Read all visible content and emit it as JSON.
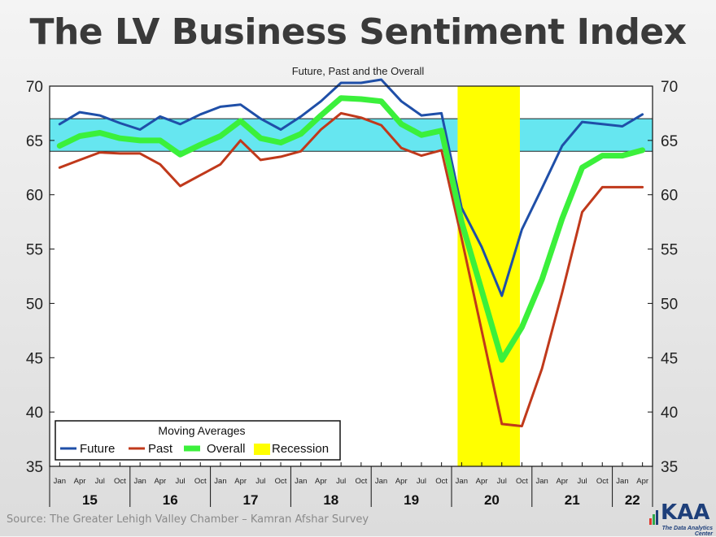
{
  "header": {
    "title": "The LV Business Sentiment Index",
    "subtitle": "Future, Past and the Overall"
  },
  "footer": {
    "source": "Source: The Greater Lehigh Valley Chamber – Kamran Afshar Survey",
    "logo_text": "KAA",
    "logo_subtext": "The Data Analytics Center"
  },
  "chart_data": {
    "type": "line",
    "ylim": [
      35,
      70
    ],
    "yticks": [
      35,
      40,
      45,
      50,
      55,
      60,
      65,
      70
    ],
    "x_month_labels": [
      "Jan",
      "Apr",
      "Jul",
      "Oct",
      "Jan",
      "Apr",
      "Jul",
      "Oct",
      "Jan",
      "Apr",
      "Jul",
      "Oct",
      "Jan",
      "Apr",
      "Jul",
      "Oct",
      "Jan",
      "Apr",
      "Jul",
      "Oct",
      "Jan",
      "Apr",
      "Jul",
      "Oct",
      "Jan",
      "Apr",
      "Jul",
      "Oct",
      "Jan",
      "Apr"
    ],
    "year_groups": [
      {
        "label": "15",
        "start": 0,
        "end": 3
      },
      {
        "label": "16",
        "start": 4,
        "end": 7
      },
      {
        "label": "17",
        "start": 8,
        "end": 11
      },
      {
        "label": "18",
        "start": 12,
        "end": 15
      },
      {
        "label": "19",
        "start": 16,
        "end": 19
      },
      {
        "label": "20",
        "start": 20,
        "end": 23
      },
      {
        "label": "21",
        "start": 24,
        "end": 27
      },
      {
        "label": "22",
        "start": 28,
        "end": 29
      }
    ],
    "band": {
      "from": 64,
      "to": 67,
      "color": "#66e6f0"
    },
    "recession": {
      "start": 20.3,
      "end": 23.4,
      "color": "#ffff00"
    },
    "legend": {
      "title": "Moving Averages",
      "placement": "bottom-left",
      "items": [
        "Future",
        "Past",
        "Overall",
        "Recession"
      ]
    },
    "series": [
      {
        "name": "Future",
        "color": "#1f4fa8",
        "width": 3,
        "values": [
          66.5,
          67.6,
          67.3,
          66.6,
          66.0,
          67.2,
          66.5,
          67.4,
          68.1,
          68.3,
          67.0,
          66.0,
          67.2,
          68.6,
          70.3,
          70.3,
          70.6,
          68.6,
          67.3,
          67.5,
          58.8,
          55.2,
          50.7,
          56.8,
          60.6,
          64.5,
          66.7,
          66.5,
          66.3,
          67.4
        ]
      },
      {
        "name": "Past",
        "color": "#c0391b",
        "width": 3,
        "values": [
          62.5,
          63.2,
          63.9,
          63.8,
          63.8,
          62.8,
          60.8,
          61.8,
          62.8,
          65.0,
          63.2,
          63.5,
          64.0,
          66.0,
          67.5,
          67.1,
          66.4,
          64.3,
          63.6,
          64.1,
          56.0,
          47.5,
          38.9,
          38.7,
          44.0,
          51.0,
          58.4,
          60.7,
          60.7,
          60.7
        ]
      },
      {
        "name": "Overall",
        "color": "#3bf03b",
        "width": 7,
        "values": [
          64.5,
          65.4,
          65.7,
          65.2,
          65.0,
          65.0,
          63.7,
          64.6,
          65.4,
          66.8,
          65.2,
          64.8,
          65.6,
          67.3,
          68.9,
          68.8,
          68.6,
          66.5,
          65.5,
          65.9,
          57.5,
          51.2,
          44.8,
          47.8,
          52.2,
          57.8,
          62.5,
          63.6,
          63.6,
          64.1
        ]
      }
    ]
  }
}
